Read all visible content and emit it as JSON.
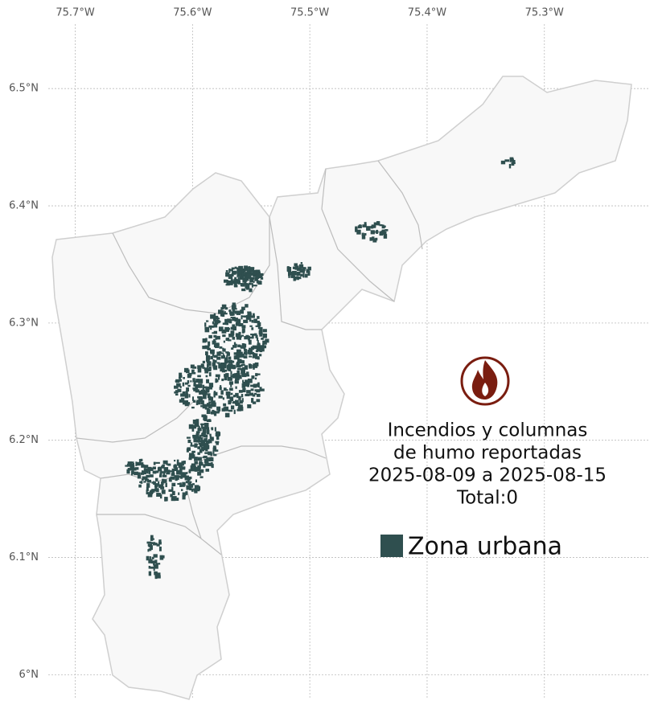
{
  "map": {
    "xlim": [
      -75.723,
      -75.21
    ],
    "ylim": [
      5.979,
      6.555
    ],
    "xticks": [
      {
        "value": -75.7,
        "label": "75.7°W"
      },
      {
        "value": -75.6,
        "label": "75.6°W"
      },
      {
        "value": -75.5,
        "label": "75.5°W"
      },
      {
        "value": -75.4,
        "label": "75.4°W"
      },
      {
        "value": -75.3,
        "label": "75.3°W"
      }
    ],
    "yticks": [
      {
        "value": 6.0,
        "label": "6°N"
      },
      {
        "value": 6.1,
        "label": "6.1°N"
      },
      {
        "value": 6.2,
        "label": "6.2°N"
      },
      {
        "value": 6.3,
        "label": "6.3°N"
      },
      {
        "value": 6.4,
        "label": "6.4°N"
      },
      {
        "value": 6.5,
        "label": "6.5°N"
      }
    ],
    "annotation": [
      "Incendios y columnas",
      "de humo reportadas",
      "2025-08-09 a 2025-08-15",
      "Total:0"
    ],
    "legend": {
      "label": "Zona urbana",
      "color": "#2f4f4f"
    }
  }
}
